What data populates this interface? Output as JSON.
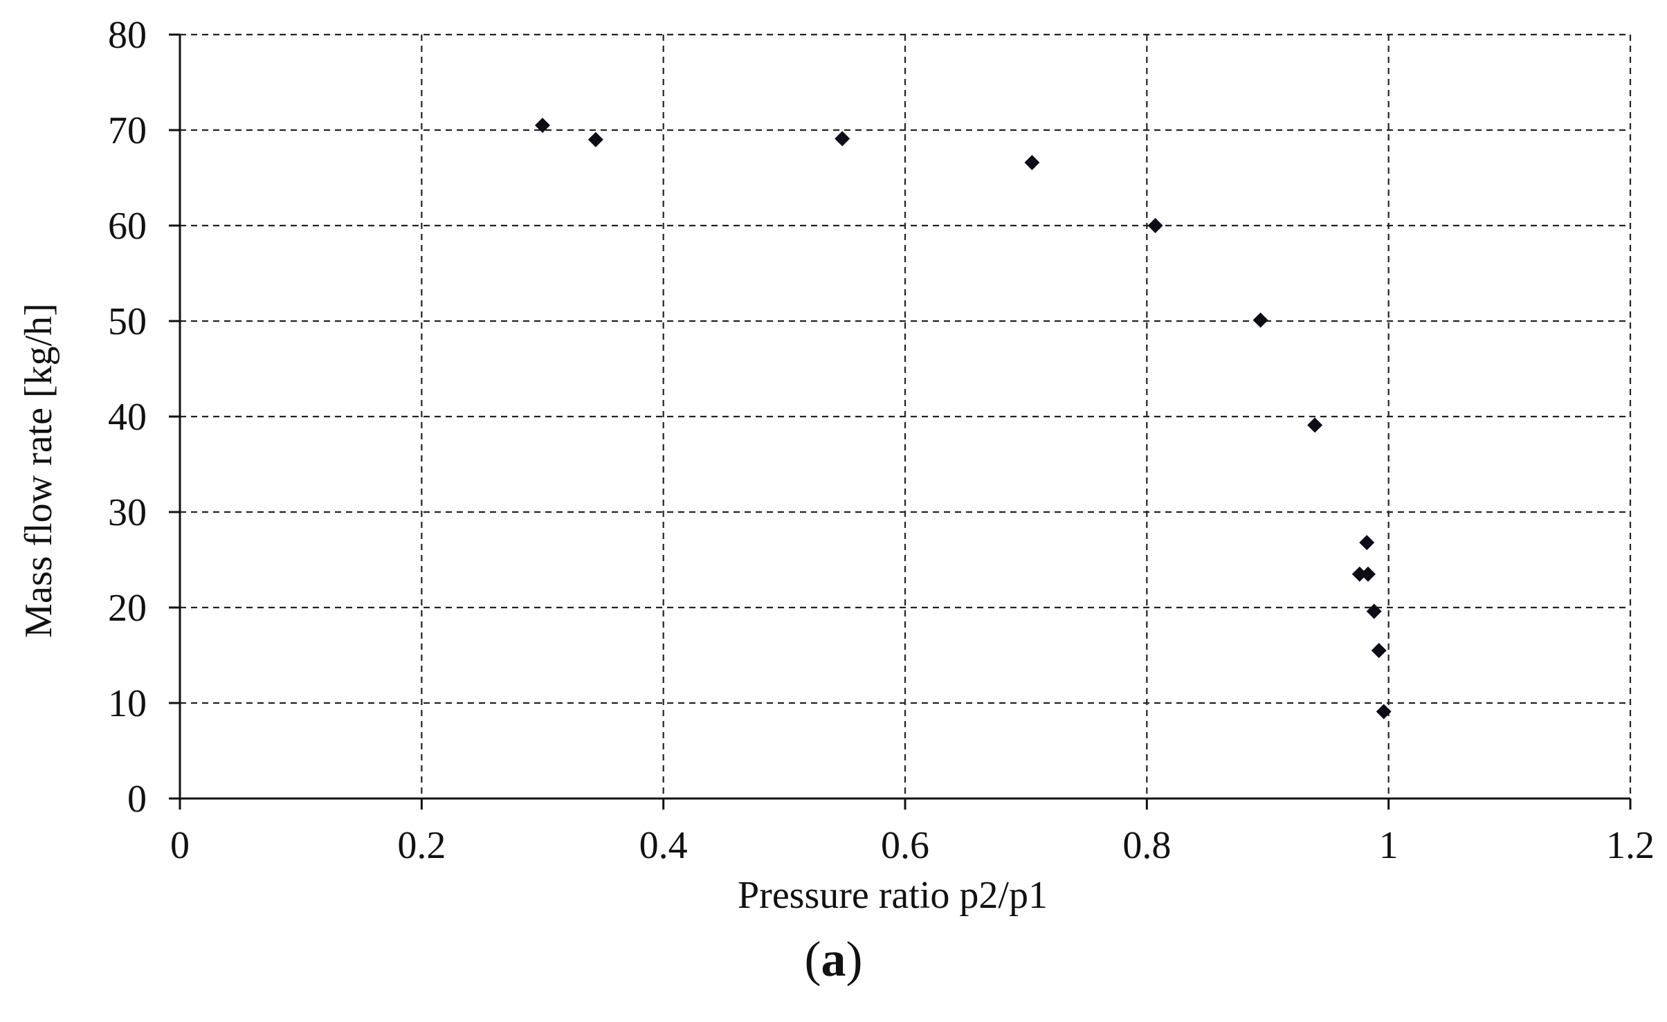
{
  "chart_data": {
    "type": "scatter",
    "title": "",
    "xlabel": "Pressure ratio p2/p1",
    "ylabel": "Mass flow rate [kg/h]",
    "xlim": [
      0,
      1.2
    ],
    "ylim": [
      0,
      80
    ],
    "x_ticks": [
      "0",
      "0.2",
      "0.4",
      "0.6",
      "0.8",
      "1",
      "1.2"
    ],
    "y_ticks": [
      "0",
      "10",
      "20",
      "30",
      "40",
      "50",
      "60",
      "70",
      "80"
    ],
    "x_tick_values": [
      0,
      0.2,
      0.4,
      0.6,
      0.8,
      1.0,
      1.2
    ],
    "y_tick_values": [
      0,
      10,
      20,
      30,
      40,
      50,
      60,
      70,
      80
    ],
    "grid": true,
    "grid_style": "dashed",
    "marker": "diamond",
    "marker_color": "#0d0d1a",
    "series": [
      {
        "points": [
          {
            "x": 0.3,
            "y": 70.5
          },
          {
            "x": 0.344,
            "y": 69.0
          },
          {
            "x": 0.548,
            "y": 69.1
          },
          {
            "x": 0.705,
            "y": 66.6
          },
          {
            "x": 0.807,
            "y": 60.0
          },
          {
            "x": 0.894,
            "y": 50.1
          },
          {
            "x": 0.939,
            "y": 39.1
          },
          {
            "x": 0.982,
            "y": 26.8
          },
          {
            "x": 0.976,
            "y": 23.5
          },
          {
            "x": 0.983,
            "y": 23.5
          },
          {
            "x": 0.988,
            "y": 19.6
          },
          {
            "x": 0.992,
            "y": 15.5
          },
          {
            "x": 0.996,
            "y": 9.1
          }
        ]
      }
    ]
  },
  "caption": {
    "open": "(",
    "letter": "a",
    "close": ")"
  }
}
